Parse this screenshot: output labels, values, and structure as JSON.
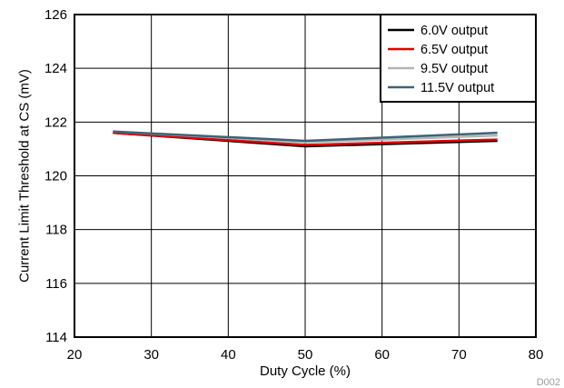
{
  "chart_data": {
    "type": "line",
    "title": "",
    "xlabel": "Duty Cycle (%)",
    "ylabel": "Current Limit Threshold at CS (mV)",
    "xlim": [
      20,
      80
    ],
    "ylim": [
      114,
      126
    ],
    "x_ticks": [
      "20",
      "30",
      "40",
      "50",
      "60",
      "70",
      "80"
    ],
    "y_ticks": [
      "114",
      "116",
      "118",
      "120",
      "122",
      "124",
      "126"
    ],
    "grid": true,
    "legend_position": "top-right",
    "x": [
      25,
      50,
      75
    ],
    "series": [
      {
        "name": "6.0V output",
        "color": "#000000",
        "values": [
          121.6,
          121.1,
          121.3
        ]
      },
      {
        "name": "6.5V output",
        "color": "#e00000",
        "values": [
          121.6,
          121.15,
          121.35
        ]
      },
      {
        "name": "9.5V output",
        "color": "#b4b4b4",
        "values": [
          121.65,
          121.25,
          121.5
        ]
      },
      {
        "name": "11.5V output",
        "color": "#3c6478",
        "values": [
          121.65,
          121.3,
          121.6
        ]
      }
    ],
    "figure_id": "D002"
  }
}
